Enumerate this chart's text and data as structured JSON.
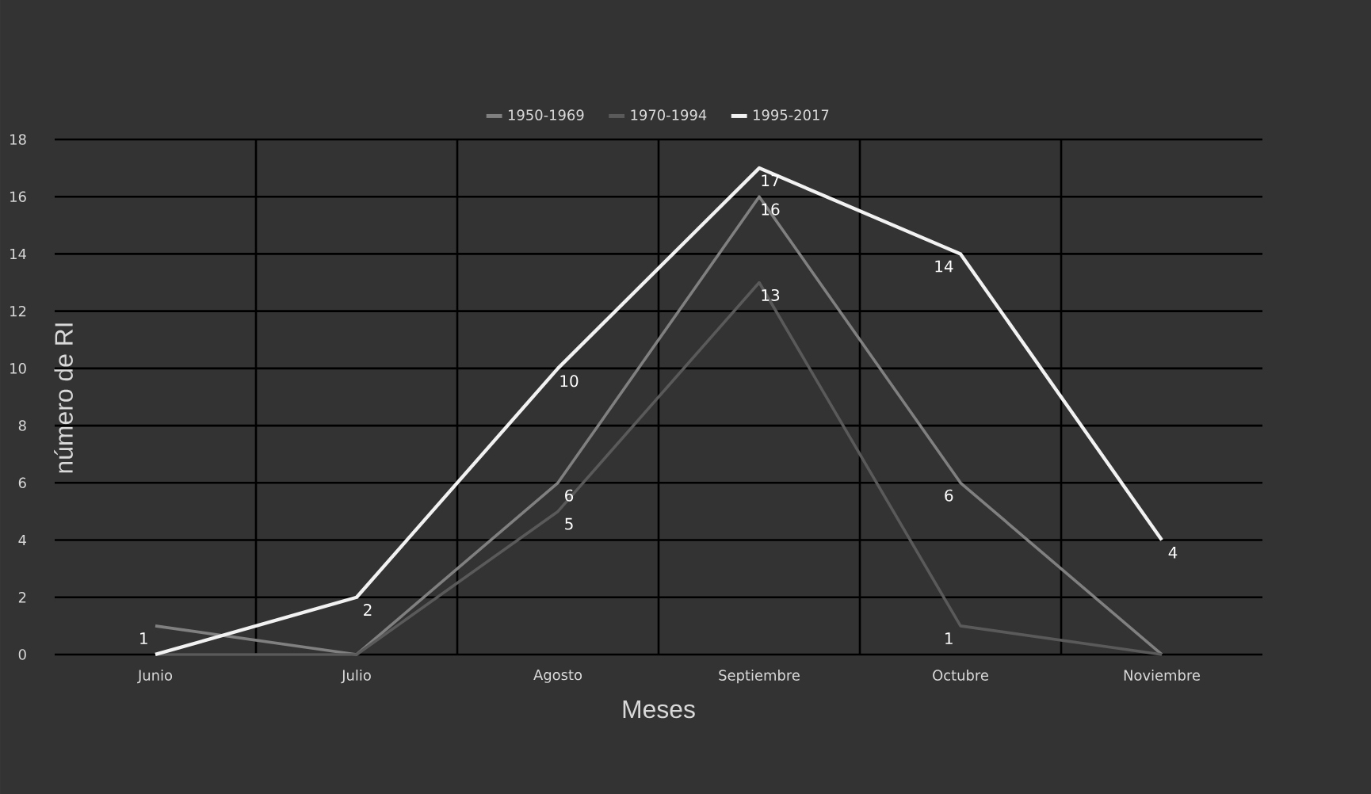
{
  "chart_data": {
    "type": "line",
    "xlabel": "Meses",
    "ylabel": "número de RI",
    "categories": [
      "Junio",
      "Julio",
      "Agosto",
      "Septiembre",
      "Octubre",
      "Noviembre"
    ],
    "series": [
      {
        "name": "1950-1969",
        "color": "#808080",
        "values": [
          1,
          0,
          6,
          16,
          6,
          0
        ],
        "value_labels": [
          "1",
          null,
          "6",
          "16",
          "6",
          null
        ]
      },
      {
        "name": "1970-1994",
        "color": "#5a5a5a",
        "values": [
          0,
          0,
          5,
          13,
          1,
          0
        ],
        "value_labels": [
          null,
          null,
          "5",
          "13",
          "1",
          null
        ]
      },
      {
        "name": "1995-2017",
        "color": "#f2f2f2",
        "values": [
          0,
          2,
          10,
          17,
          14,
          4
        ],
        "value_labels": [
          null,
          "2",
          "10",
          "17",
          "14",
          "4"
        ]
      }
    ],
    "ylim": [
      0,
      18
    ],
    "yticks": [
      0,
      2,
      4,
      6,
      8,
      10,
      12,
      14,
      16,
      18
    ],
    "grid": true,
    "legend": "top",
    "marker": "none",
    "line_style": "solid"
  }
}
